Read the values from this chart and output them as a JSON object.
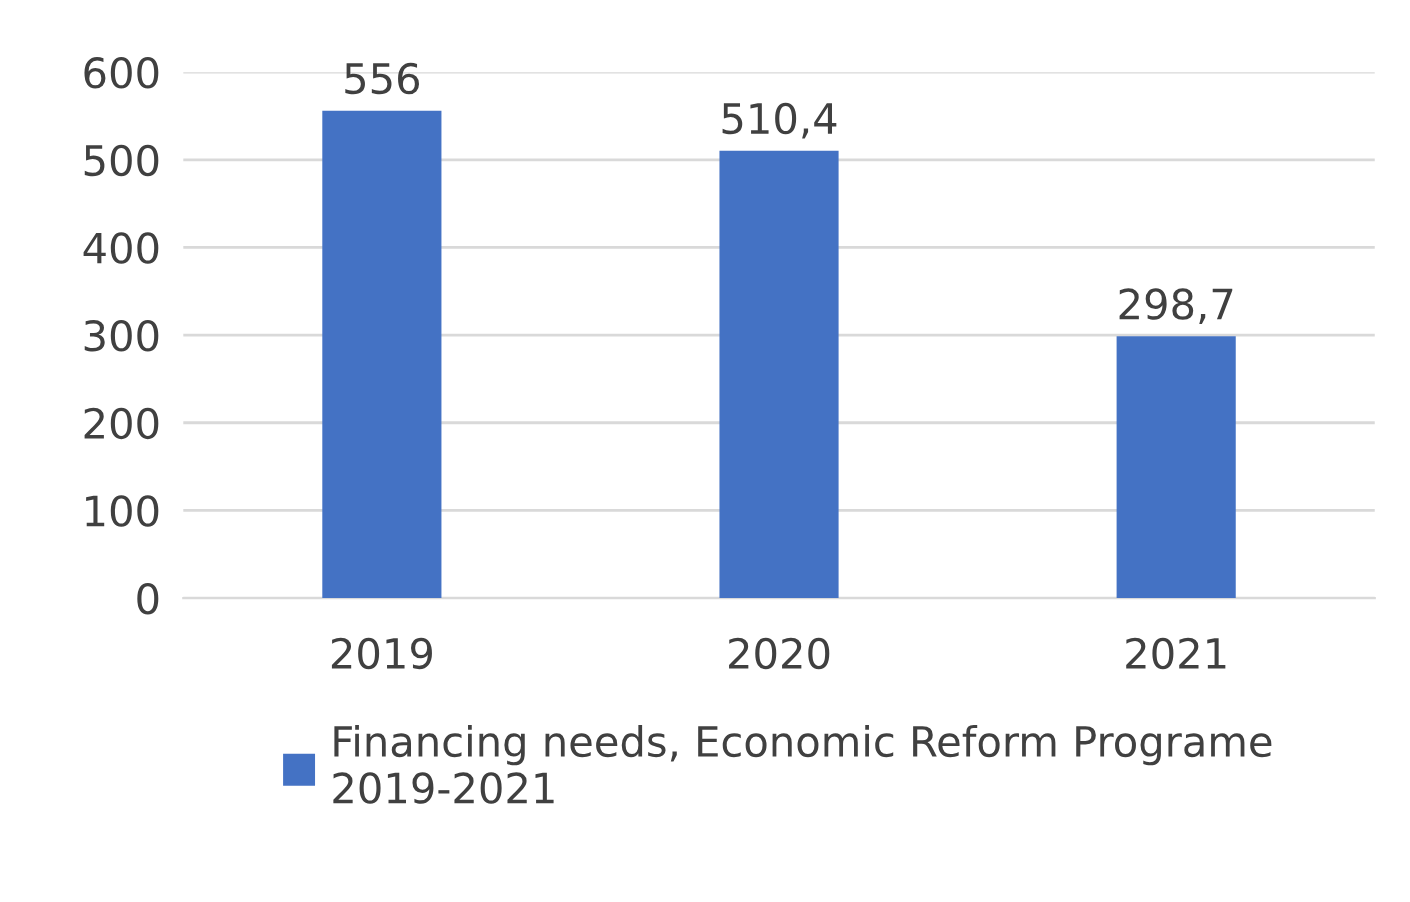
{
  "chart_data": {
    "type": "bar",
    "categories": [
      "2019",
      "2020",
      "2021"
    ],
    "series": [
      {
        "name": "Financing needs, Economic Reform Programe\n2019-2021",
        "color": "#4472c4",
        "values": [
          556,
          510.4,
          298.7
        ],
        "value_labels": [
          "556",
          "510,4",
          "298,7"
        ]
      }
    ],
    "ylim": [
      0,
      600
    ],
    "yticks": [
      0,
      100,
      200,
      300,
      400,
      500,
      600
    ],
    "grid": "y",
    "legend": "bottom"
  }
}
